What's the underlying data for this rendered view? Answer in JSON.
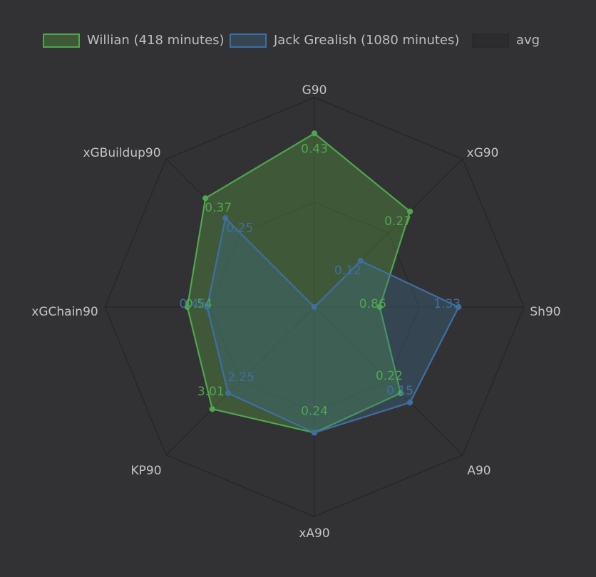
{
  "chart_data": {
    "type": "radar",
    "axes": [
      "G90",
      "xG90",
      "Sh90",
      "A90",
      "xA90",
      "KP90",
      "xGChain90",
      "xGBuildup90"
    ],
    "series": [
      {
        "name": "Willian (418 minutes)",
        "color": "#4fa64f",
        "fill": "rgba(80,140,60,0.42)",
        "values": [
          0.43,
          0.27,
          0.86,
          0.22,
          0.24,
          3.01,
          0.54,
          0.37
        ],
        "norm": [
          0.829,
          0.645,
          0.312,
          0.582,
          0.6,
          0.689,
          0.606,
          0.735
        ],
        "labels": [
          "0.43",
          "0.27",
          "0.86",
          "0.22",
          "0.24",
          "3.01",
          "0.54",
          "0.37"
        ]
      },
      {
        "name": "Jack Grealish (1080 minutes)",
        "color": "#3f6fa0",
        "fill": "rgba(60,110,140,0.35)",
        "values": [
          0.0,
          0.12,
          1.33,
          0.15,
          0.24,
          2.25,
          0.46,
          0.25
        ],
        "norm": [
          0.0,
          0.312,
          0.688,
          0.645,
          0.6,
          0.582,
          0.512,
          0.6
        ],
        "labels": [
          "",
          "0.12",
          "1.33",
          "0.15",
          "",
          "2.25",
          "0.46",
          "0.25"
        ]
      },
      {
        "name": "avg",
        "color": "#2a2a2c",
        "fill": "rgba(30,30,32,0.0)",
        "values": [],
        "norm": [
          0.5,
          0.5,
          0.5,
          0.5,
          0.5,
          0.5,
          0.5,
          0.5
        ],
        "labels": []
      }
    ],
    "grid": true,
    "legend": "top"
  }
}
